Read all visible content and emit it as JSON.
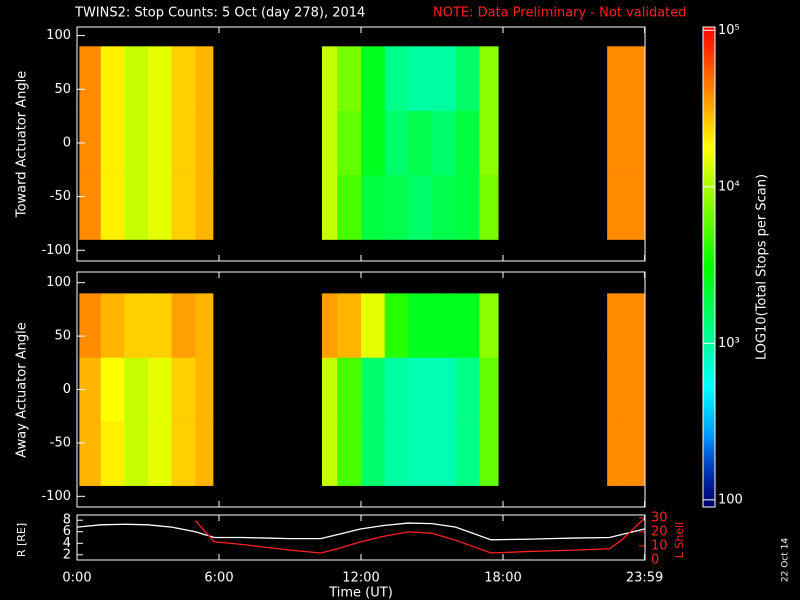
{
  "chart_data": [
    {
      "type": "heatmap",
      "title": "TWINS2: Stop Counts:  5 Oct (day 278), 2014",
      "note": "NOTE: Data Preliminary - Not validated",
      "ylabel": "Toward Actuator Angle",
      "x_bins": [
        0.1,
        1,
        2,
        3,
        4,
        5,
        5.75,
        10.35,
        11,
        12,
        13,
        14,
        15,
        16,
        17,
        17.8,
        22.4,
        23,
        24
      ],
      "y_bins": [
        -90,
        -30,
        30,
        90
      ],
      "values": [
        [
          40000,
          20000,
          12000,
          15000,
          25000,
          30000,
          null,
          12000,
          5000,
          2000,
          1800,
          1500,
          1800,
          2000,
          7000,
          null,
          40000,
          40000
        ],
        [
          40000,
          20000,
          12000,
          15000,
          25000,
          30000,
          null,
          12000,
          6000,
          2500,
          1500,
          1800,
          1500,
          2000,
          8000,
          null,
          40000,
          40000
        ],
        [
          40000,
          20000,
          12000,
          15000,
          25000,
          30000,
          null,
          12000,
          7000,
          2500,
          1200,
          1000,
          1000,
          1500,
          8000,
          null,
          40000,
          40000
        ]
      ],
      "xlim": [
        0,
        24
      ],
      "ylim": [
        -110,
        108
      ],
      "yticks": [
        -100,
        -50,
        0,
        50,
        100
      ]
    },
    {
      "type": "heatmap",
      "ylabel": "Away Actuator Angle",
      "x_bins": [
        0.1,
        1,
        2,
        3,
        4,
        5,
        5.75,
        10.35,
        11,
        12,
        13,
        14,
        15,
        16,
        17,
        17.8,
        22.4,
        23,
        24
      ],
      "y_bins": [
        -90,
        -30,
        30,
        90
      ],
      "values": [
        [
          30000,
          20000,
          12000,
          15000,
          25000,
          30000,
          null,
          12000,
          5000,
          1500,
          1000,
          900,
          900,
          1200,
          6000,
          null,
          40000,
          40000
        ],
        [
          30000,
          18000,
          12000,
          15000,
          25000,
          30000,
          null,
          12000,
          5000,
          1500,
          1000,
          900,
          900,
          1200,
          6000,
          null,
          40000,
          40000
        ],
        [
          40000,
          30000,
          25000,
          25000,
          35000,
          30000,
          null,
          35000,
          30000,
          15000,
          4000,
          2500,
          2500,
          2500,
          8000,
          null,
          40000,
          40000
        ]
      ],
      "xlim": [
        0,
        24
      ],
      "ylim": [
        -110,
        110
      ],
      "yticks": [
        -100,
        -50,
        0,
        50,
        100
      ]
    },
    {
      "type": "line",
      "xlabel": "Time (UT)",
      "ylabel": "R [RE]",
      "y2label": "L Shell",
      "x": [
        0,
        1,
        2,
        3,
        4,
        5,
        5.8,
        7,
        8,
        9,
        10.3,
        11,
        12,
        13,
        14,
        15,
        16,
        17.5,
        19,
        20,
        21,
        22.5,
        23,
        24
      ],
      "series": [
        {
          "name": "R",
          "color": "#ffffff",
          "values": [
            6.8,
            7.2,
            7.3,
            7.2,
            6.8,
            6,
            5,
            5,
            4.9,
            4.8,
            4.8,
            5.5,
            6.5,
            7.1,
            7.5,
            7.4,
            6.8,
            4.6,
            4.7,
            4.8,
            4.9,
            5,
            5.5,
            6.5
          ]
        },
        {
          "name": "L Shell",
          "color": "#ff2020",
          "axis": "y2",
          "values": [
            null,
            null,
            null,
            null,
            null,
            28,
            13,
            11,
            9,
            7,
            5,
            8,
            13,
            17,
            20,
            19,
            14,
            5,
            6,
            6.5,
            7,
            8,
            14,
            30
          ]
        }
      ],
      "xlim": [
        0,
        24
      ],
      "xticks": [
        {
          "value": 0,
          "label": "0:00"
        },
        {
          "value": 6,
          "label": "6:00"
        },
        {
          "value": 12,
          "label": "12:00"
        },
        {
          "value": 18,
          "label": "18:00"
        },
        {
          "value": 23.983,
          "label": "23:59"
        }
      ],
      "ylim": [
        1.1,
        8.9
      ],
      "yticks": [
        2,
        4,
        6,
        8
      ],
      "y2lim": [
        0,
        32
      ],
      "y2ticks": [
        0,
        10,
        20,
        30
      ]
    }
  ],
  "colorbar": {
    "label": "LOG10(Total Stops per Scan)",
    "clim": [
      90,
      105000
    ],
    "log": true,
    "ticks": [
      100,
      {
        "value": 1000,
        "label": "10³"
      },
      {
        "value": 10000,
        "label": "10⁴"
      },
      {
        "value": 100000,
        "label": "10⁵"
      }
    ]
  },
  "footer_date": "22 Oct 14"
}
